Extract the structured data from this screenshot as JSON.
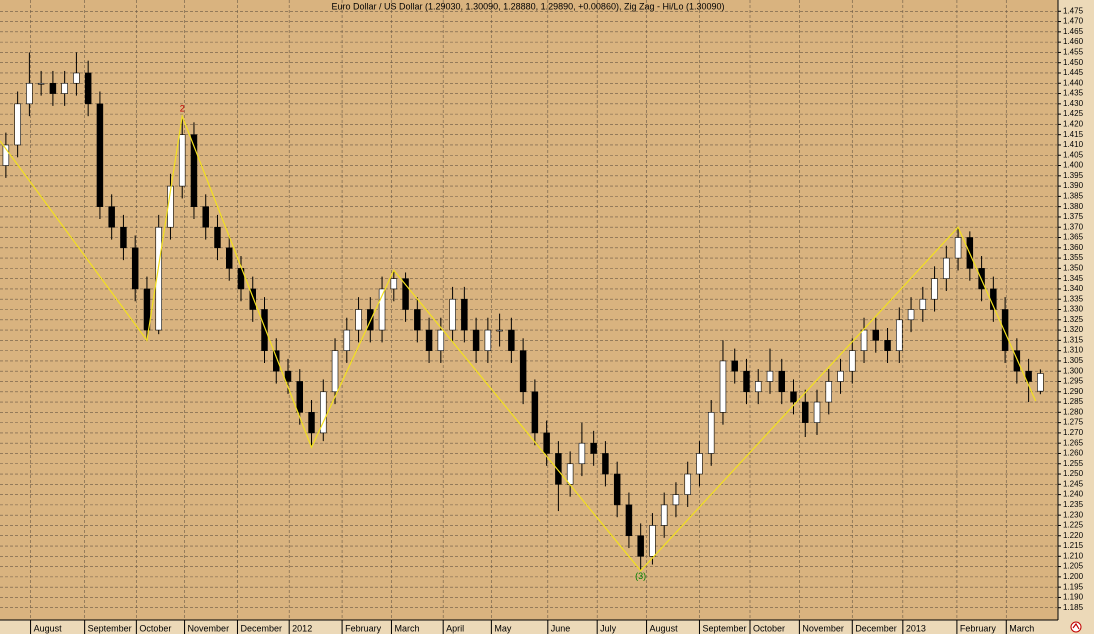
{
  "chart_data": {
    "type": "candlestick",
    "title": "Euro Dollar / US Dollar (1.29030, 1.30090, 1.28880, 1.29890, +0.00860), Zig Zag - Hi/Lo (1.30090)",
    "up_color": "#ffffff",
    "down_color": "#000000",
    "grid": true,
    "xlim": [
      -0.5,
      89.5
    ],
    "xticks": [
      {
        "value": 2.1,
        "label": "August"
      },
      {
        "value": 6.7,
        "label": "September"
      },
      {
        "value": 11.1,
        "label": "October"
      },
      {
        "value": 15.2,
        "label": "November"
      },
      {
        "value": 19.7,
        "label": "December"
      },
      {
        "value": 24.1,
        "label": "2012"
      },
      {
        "value": 28.6,
        "label": "February"
      },
      {
        "value": 32.8,
        "label": "March"
      },
      {
        "value": 37.2,
        "label": "April"
      },
      {
        "value": 41.3,
        "label": "May"
      },
      {
        "value": 46.1,
        "label": "June"
      },
      {
        "value": 50.3,
        "label": "July"
      },
      {
        "value": 54.5,
        "label": "August"
      },
      {
        "value": 59.0,
        "label": "September"
      },
      {
        "value": 63.3,
        "label": "October"
      },
      {
        "value": 67.5,
        "label": "November"
      },
      {
        "value": 72.0,
        "label": "December"
      },
      {
        "value": 76.3,
        "label": "2013"
      },
      {
        "value": 80.9,
        "label": "February"
      },
      {
        "value": 85.1,
        "label": "March"
      }
    ],
    "ylim": [
      1.18,
      1.48
    ],
    "yticks": [
      1.185,
      {
        "value": 1.19,
        "label": "1.190"
      },
      1.195,
      {
        "value": 1.2,
        "label": "1.200"
      },
      1.205,
      {
        "value": 1.21,
        "label": "1.210"
      },
      1.215,
      {
        "value": 1.22,
        "label": "1.220"
      },
      1.225,
      {
        "value": 1.23,
        "label": "1.230"
      },
      1.235,
      {
        "value": 1.24,
        "label": "1.240"
      },
      1.245,
      {
        "value": 1.25,
        "label": "1.250"
      },
      1.255,
      {
        "value": 1.26,
        "label": "1.260"
      },
      1.265,
      {
        "value": 1.27,
        "label": "1.270"
      },
      1.275,
      {
        "value": 1.28,
        "label": "1.280"
      },
      1.285,
      {
        "value": 1.29,
        "label": "1.290"
      },
      1.295,
      {
        "value": 1.3,
        "label": "1.300"
      },
      1.305,
      {
        "value": 1.31,
        "label": "1.310"
      },
      1.315,
      {
        "value": 1.32,
        "label": "1.320"
      },
      1.325,
      {
        "value": 1.33,
        "label": "1.330"
      },
      1.335,
      {
        "value": 1.34,
        "label": "1.340"
      },
      1.345,
      {
        "value": 1.35,
        "label": "1.350"
      },
      1.355,
      {
        "value": 1.36,
        "label": "1.360"
      },
      1.365,
      {
        "value": 1.37,
        "label": "1.370"
      },
      1.375,
      {
        "value": 1.38,
        "label": "1.380"
      },
      1.385,
      {
        "value": 1.39,
        "label": "1.390"
      },
      1.395,
      {
        "value": 1.4,
        "label": "1.400"
      },
      1.405,
      {
        "value": 1.41,
        "label": "1.410"
      },
      1.415,
      {
        "value": 1.42,
        "label": "1.420"
      },
      1.425,
      {
        "value": 1.43,
        "label": "1.430"
      },
      1.435,
      {
        "value": 1.44,
        "label": "1.440"
      },
      1.445,
      {
        "value": 1.45,
        "label": "1.450"
      },
      1.455,
      {
        "value": 1.46,
        "label": "1.460"
      },
      1.465,
      {
        "value": 1.47,
        "label": "1.470"
      },
      1.475
    ],
    "ohlc": [
      [
        1.4,
        1.416,
        1.394,
        1.41
      ],
      [
        1.41,
        1.436,
        1.404,
        1.43
      ],
      [
        1.43,
        1.455,
        1.424,
        1.44
      ],
      [
        1.44,
        1.446,
        1.434,
        1.44
      ],
      [
        1.44,
        1.446,
        1.429,
        1.435
      ],
      [
        1.435,
        1.446,
        1.429,
        1.44
      ],
      [
        1.44,
        1.455,
        1.434,
        1.445
      ],
      [
        1.445,
        1.451,
        1.424,
        1.43
      ],
      [
        1.43,
        1.436,
        1.374,
        1.38
      ],
      [
        1.38,
        1.386,
        1.364,
        1.37
      ],
      [
        1.37,
        1.376,
        1.354,
        1.36
      ],
      [
        1.36,
        1.366,
        1.334,
        1.34
      ],
      [
        1.34,
        1.346,
        1.315,
        1.32
      ],
      [
        1.32,
        1.376,
        1.318,
        1.37
      ],
      [
        1.37,
        1.396,
        1.364,
        1.39
      ],
      [
        1.39,
        1.424,
        1.384,
        1.415
      ],
      [
        1.415,
        1.421,
        1.374,
        1.38
      ],
      [
        1.38,
        1.386,
        1.364,
        1.37
      ],
      [
        1.37,
        1.376,
        1.354,
        1.36
      ],
      [
        1.36,
        1.366,
        1.344,
        1.35
      ],
      [
        1.35,
        1.356,
        1.334,
        1.34
      ],
      [
        1.34,
        1.346,
        1.324,
        1.33
      ],
      [
        1.33,
        1.336,
        1.304,
        1.31
      ],
      [
        1.31,
        1.316,
        1.294,
        1.3
      ],
      [
        1.3,
        1.306,
        1.289,
        1.295
      ],
      [
        1.295,
        1.301,
        1.274,
        1.28
      ],
      [
        1.28,
        1.286,
        1.263,
        1.27
      ],
      [
        1.27,
        1.296,
        1.266,
        1.29
      ],
      [
        1.29,
        1.316,
        1.284,
        1.31
      ],
      [
        1.31,
        1.326,
        1.304,
        1.32
      ],
      [
        1.32,
        1.336,
        1.314,
        1.33
      ],
      [
        1.33,
        1.336,
        1.314,
        1.32
      ],
      [
        1.32,
        1.346,
        1.314,
        1.34
      ],
      [
        1.34,
        1.349,
        1.334,
        1.345
      ],
      [
        1.345,
        1.348,
        1.324,
        1.33
      ],
      [
        1.33,
        1.336,
        1.314,
        1.32
      ],
      [
        1.32,
        1.326,
        1.304,
        1.31
      ],
      [
        1.31,
        1.326,
        1.304,
        1.32
      ],
      [
        1.32,
        1.341,
        1.314,
        1.335
      ],
      [
        1.335,
        1.341,
        1.314,
        1.32
      ],
      [
        1.32,
        1.326,
        1.304,
        1.31
      ],
      [
        1.31,
        1.326,
        1.304,
        1.32
      ],
      [
        1.32,
        1.328,
        1.312,
        1.32
      ],
      [
        1.32,
        1.326,
        1.304,
        1.31
      ],
      [
        1.31,
        1.316,
        1.284,
        1.29
      ],
      [
        1.29,
        1.296,
        1.264,
        1.27
      ],
      [
        1.27,
        1.276,
        1.254,
        1.26
      ],
      [
        1.26,
        1.266,
        1.232,
        1.245
      ],
      [
        1.245,
        1.261,
        1.239,
        1.255
      ],
      [
        1.255,
        1.275,
        1.249,
        1.265
      ],
      [
        1.265,
        1.271,
        1.254,
        1.26
      ],
      [
        1.26,
        1.266,
        1.244,
        1.25
      ],
      [
        1.25,
        1.256,
        1.229,
        1.235
      ],
      [
        1.235,
        1.241,
        1.214,
        1.22
      ],
      [
        1.22,
        1.226,
        1.203,
        1.21
      ],
      [
        1.21,
        1.231,
        1.206,
        1.225
      ],
      [
        1.225,
        1.241,
        1.219,
        1.235
      ],
      [
        1.235,
        1.246,
        1.229,
        1.24
      ],
      [
        1.24,
        1.256,
        1.234,
        1.25
      ],
      [
        1.25,
        1.266,
        1.244,
        1.26
      ],
      [
        1.26,
        1.286,
        1.254,
        1.28
      ],
      [
        1.28,
        1.315,
        1.274,
        1.305
      ],
      [
        1.305,
        1.311,
        1.294,
        1.3
      ],
      [
        1.3,
        1.306,
        1.284,
        1.29
      ],
      [
        1.29,
        1.301,
        1.284,
        1.295
      ],
      [
        1.295,
        1.311,
        1.289,
        1.3
      ],
      [
        1.3,
        1.306,
        1.284,
        1.29
      ],
      [
        1.29,
        1.296,
        1.279,
        1.285
      ],
      [
        1.285,
        1.291,
        1.268,
        1.275
      ],
      [
        1.275,
        1.291,
        1.269,
        1.285
      ],
      [
        1.285,
        1.301,
        1.279,
        1.295
      ],
      [
        1.295,
        1.306,
        1.289,
        1.3
      ],
      [
        1.3,
        1.316,
        1.294,
        1.31
      ],
      [
        1.31,
        1.326,
        1.304,
        1.32
      ],
      [
        1.32,
        1.326,
        1.309,
        1.315
      ],
      [
        1.315,
        1.321,
        1.304,
        1.31
      ],
      [
        1.31,
        1.331,
        1.304,
        1.325
      ],
      [
        1.325,
        1.336,
        1.319,
        1.33
      ],
      [
        1.33,
        1.341,
        1.324,
        1.335
      ],
      [
        1.335,
        1.351,
        1.329,
        1.345
      ],
      [
        1.345,
        1.361,
        1.339,
        1.355
      ],
      [
        1.355,
        1.37,
        1.349,
        1.365
      ],
      [
        1.365,
        1.368,
        1.344,
        1.35
      ],
      [
        1.35,
        1.356,
        1.334,
        1.34
      ],
      [
        1.34,
        1.346,
        1.324,
        1.33
      ],
      [
        1.33,
        1.336,
        1.304,
        1.31
      ],
      [
        1.31,
        1.316,
        1.294,
        1.3
      ],
      [
        1.3,
        1.306,
        1.285,
        1.295
      ],
      [
        1.2903,
        1.3009,
        1.2888,
        1.2989
      ]
    ],
    "zigzag": {
      "color": "#f2e020",
      "x": [
        -0.5,
        12,
        15,
        26,
        33,
        54,
        81,
        87.6
      ],
      "values": [
        1.412,
        1.315,
        1.424,
        1.263,
        1.349,
        1.203,
        1.37,
        1.2855
      ],
      "labels": [
        null,
        null,
        "2",
        null,
        null,
        "(3)",
        null,
        null
      ],
      "label_colors": [
        null,
        null,
        "#c00000",
        null,
        null,
        "#008000",
        null,
        null
      ]
    }
  }
}
